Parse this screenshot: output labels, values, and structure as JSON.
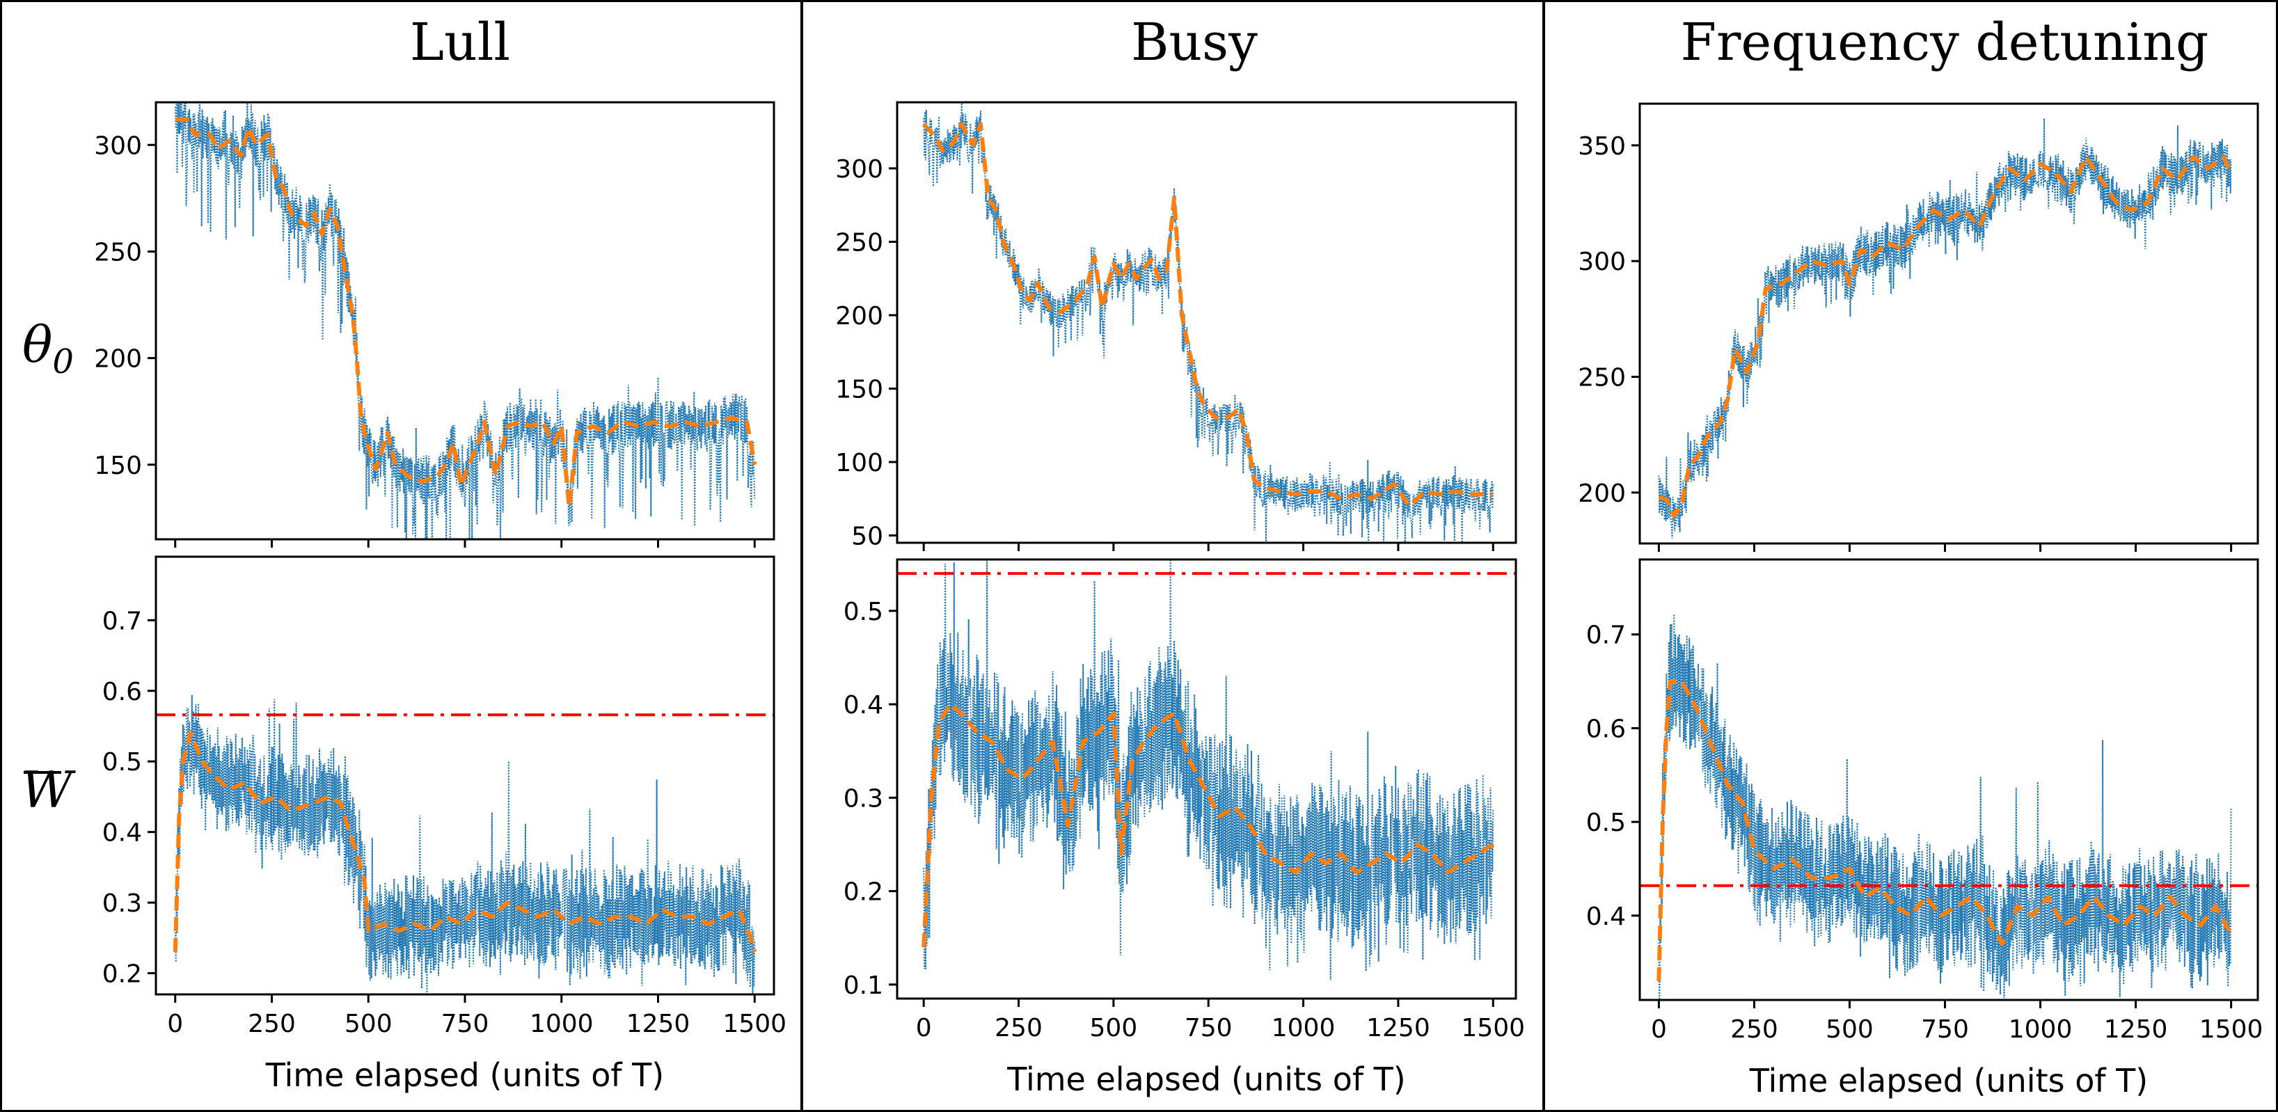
{
  "figure": {
    "colors": {
      "raw": "#1f77b4",
      "smooth": "#ff7f0e",
      "threshold": "#ff0000",
      "frame": "#000000"
    },
    "ylabels": {
      "top_symbol": "θ",
      "top_sub": "0",
      "bottom_symbol": "W"
    },
    "xlabel": "Time elapsed (units of T)"
  },
  "panels": [
    {
      "title": "Lull"
    },
    {
      "title": "Busy"
    },
    {
      "title": "Frequency detuning"
    }
  ],
  "chart_data": [
    {
      "type": "line",
      "panel": "Lull",
      "variable": "theta_0",
      "xlim": [
        -50,
        1550
      ],
      "ylim": [
        115,
        320
      ],
      "xticks": [
        0,
        250,
        500,
        750,
        1000,
        1250,
        1500
      ],
      "xticks_labeled": false,
      "yticks": [
        150,
        200,
        250,
        300
      ],
      "smooth": [
        [
          0,
          312
        ],
        [
          30,
          312
        ],
        [
          50,
          305
        ],
        [
          90,
          305
        ],
        [
          110,
          298
        ],
        [
          140,
          302
        ],
        [
          170,
          295
        ],
        [
          190,
          308
        ],
        [
          210,
          300
        ],
        [
          240,
          305
        ],
        [
          260,
          285
        ],
        [
          280,
          280
        ],
        [
          300,
          268
        ],
        [
          320,
          265
        ],
        [
          340,
          262
        ],
        [
          360,
          268
        ],
        [
          380,
          258
        ],
        [
          400,
          270
        ],
        [
          420,
          262
        ],
        [
          440,
          240
        ],
        [
          460,
          220
        ],
        [
          470,
          200
        ],
        [
          480,
          175
        ],
        [
          490,
          165
        ],
        [
          510,
          152
        ],
        [
          520,
          148
        ],
        [
          550,
          165
        ],
        [
          570,
          150
        ],
        [
          600,
          145
        ],
        [
          640,
          142
        ],
        [
          680,
          145
        ],
        [
          700,
          150
        ],
        [
          720,
          160
        ],
        [
          740,
          140
        ],
        [
          760,
          150
        ],
        [
          780,
          158
        ],
        [
          800,
          170
        ],
        [
          830,
          145
        ],
        [
          860,
          168
        ],
        [
          890,
          170
        ],
        [
          920,
          168
        ],
        [
          950,
          170
        ],
        [
          980,
          160
        ],
        [
          1000,
          168
        ],
        [
          1020,
          130
        ],
        [
          1040,
          165
        ],
        [
          1080,
          168
        ],
        [
          1120,
          165
        ],
        [
          1160,
          170
        ],
        [
          1200,
          168
        ],
        [
          1240,
          170
        ],
        [
          1280,
          168
        ],
        [
          1320,
          170
        ],
        [
          1360,
          168
        ],
        [
          1400,
          170
        ],
        [
          1440,
          172
        ],
        [
          1480,
          170
        ],
        [
          1500,
          150
        ]
      ],
      "raw": {
        "seed": 11,
        "amp": 12,
        "down": 26
      }
    },
    {
      "type": "line",
      "panel": "Lull",
      "variable": "W_bar",
      "xlim": [
        -50,
        1550
      ],
      "ylim": [
        0.17,
        0.79
      ],
      "xticks": [
        0,
        250,
        500,
        750,
        1000,
        1250,
        1500
      ],
      "xticks_labeled": true,
      "yticks": [
        0.2,
        0.3,
        0.4,
        0.5,
        0.6,
        0.7
      ],
      "threshold": 0.566,
      "smooth": [
        [
          0,
          0.23
        ],
        [
          10,
          0.42
        ],
        [
          20,
          0.5
        ],
        [
          40,
          0.54
        ],
        [
          70,
          0.5
        ],
        [
          100,
          0.48
        ],
        [
          140,
          0.46
        ],
        [
          180,
          0.47
        ],
        [
          220,
          0.44
        ],
        [
          260,
          0.45
        ],
        [
          300,
          0.43
        ],
        [
          350,
          0.44
        ],
        [
          400,
          0.45
        ],
        [
          430,
          0.44
        ],
        [
          450,
          0.4
        ],
        [
          470,
          0.37
        ],
        [
          490,
          0.33
        ],
        [
          500,
          0.26
        ],
        [
          540,
          0.27
        ],
        [
          580,
          0.26
        ],
        [
          620,
          0.27
        ],
        [
          660,
          0.26
        ],
        [
          700,
          0.28
        ],
        [
          740,
          0.27
        ],
        [
          780,
          0.29
        ],
        [
          820,
          0.28
        ],
        [
          860,
          0.3
        ],
        [
          900,
          0.29
        ],
        [
          940,
          0.28
        ],
        [
          980,
          0.29
        ],
        [
          1020,
          0.27
        ],
        [
          1060,
          0.28
        ],
        [
          1100,
          0.27
        ],
        [
          1140,
          0.28
        ],
        [
          1180,
          0.28
        ],
        [
          1220,
          0.27
        ],
        [
          1260,
          0.29
        ],
        [
          1300,
          0.28
        ],
        [
          1340,
          0.28
        ],
        [
          1380,
          0.27
        ],
        [
          1420,
          0.28
        ],
        [
          1460,
          0.29
        ],
        [
          1490,
          0.25
        ],
        [
          1500,
          0.23
        ]
      ],
      "raw": {
        "seed": 21,
        "amp": 0.075,
        "down": 0.02
      }
    },
    {
      "type": "line",
      "panel": "Busy",
      "variable": "theta_0",
      "xlim": [
        -70,
        1560
      ],
      "ylim": [
        45,
        345
      ],
      "xticks": [
        0,
        250,
        500,
        750,
        1000,
        1250,
        1500
      ],
      "xticks_labeled": false,
      "yticks": [
        50,
        100,
        150,
        200,
        250,
        300
      ],
      "smooth": [
        [
          0,
          330
        ],
        [
          30,
          322
        ],
        [
          50,
          312
        ],
        [
          80,
          318
        ],
        [
          100,
          330
        ],
        [
          130,
          316
        ],
        [
          150,
          330
        ],
        [
          170,
          280
        ],
        [
          190,
          272
        ],
        [
          210,
          250
        ],
        [
          240,
          232
        ],
        [
          260,
          215
        ],
        [
          280,
          210
        ],
        [
          300,
          222
        ],
        [
          330,
          205
        ],
        [
          360,
          202
        ],
        [
          400,
          210
        ],
        [
          430,
          220
        ],
        [
          450,
          240
        ],
        [
          470,
          205
        ],
        [
          500,
          235
        ],
        [
          520,
          225
        ],
        [
          540,
          235
        ],
        [
          560,
          225
        ],
        [
          580,
          232
        ],
        [
          600,
          238
        ],
        [
          620,
          225
        ],
        [
          640,
          230
        ],
        [
          660,
          280
        ],
        [
          680,
          200
        ],
        [
          700,
          175
        ],
        [
          720,
          150
        ],
        [
          740,
          138
        ],
        [
          770,
          130
        ],
        [
          800,
          130
        ],
        [
          830,
          136
        ],
        [
          850,
          120
        ],
        [
          870,
          88
        ],
        [
          900,
          82
        ],
        [
          940,
          80
        ],
        [
          980,
          78
        ],
        [
          1020,
          80
        ],
        [
          1060,
          80
        ],
        [
          1100,
          75
        ],
        [
          1140,
          78
        ],
        [
          1180,
          75
        ],
        [
          1240,
          85
        ],
        [
          1280,
          70
        ],
        [
          1320,
          80
        ],
        [
          1360,
          78
        ],
        [
          1400,
          80
        ],
        [
          1440,
          78
        ],
        [
          1500,
          78
        ]
      ],
      "raw": {
        "seed": 31,
        "amp": 12,
        "down": 20
      }
    },
    {
      "type": "line",
      "panel": "Busy",
      "variable": "W_bar",
      "xlim": [
        -70,
        1560
      ],
      "ylim": [
        0.085,
        0.555
      ],
      "xticks": [
        0,
        250,
        500,
        750,
        1000,
        1250,
        1500
      ],
      "xticks_labeled": true,
      "yticks": [
        0.1,
        0.2,
        0.3,
        0.4,
        0.5
      ],
      "threshold": 0.54,
      "smooth": [
        [
          0,
          0.14
        ],
        [
          20,
          0.3
        ],
        [
          40,
          0.38
        ],
        [
          70,
          0.4
        ],
        [
          100,
          0.39
        ],
        [
          140,
          0.37
        ],
        [
          180,
          0.36
        ],
        [
          220,
          0.33
        ],
        [
          260,
          0.32
        ],
        [
          300,
          0.34
        ],
        [
          340,
          0.36
        ],
        [
          380,
          0.27
        ],
        [
          420,
          0.36
        ],
        [
          460,
          0.37
        ],
        [
          500,
          0.39
        ],
        [
          520,
          0.24
        ],
        [
          550,
          0.34
        ],
        [
          580,
          0.36
        ],
        [
          620,
          0.38
        ],
        [
          660,
          0.39
        ],
        [
          700,
          0.34
        ],
        [
          740,
          0.31
        ],
        [
          780,
          0.28
        ],
        [
          820,
          0.29
        ],
        [
          860,
          0.27
        ],
        [
          900,
          0.24
        ],
        [
          940,
          0.23
        ],
        [
          980,
          0.22
        ],
        [
          1020,
          0.24
        ],
        [
          1060,
          0.23
        ],
        [
          1100,
          0.24
        ],
        [
          1140,
          0.22
        ],
        [
          1180,
          0.23
        ],
        [
          1220,
          0.24
        ],
        [
          1260,
          0.23
        ],
        [
          1300,
          0.25
        ],
        [
          1340,
          0.24
        ],
        [
          1380,
          0.22
        ],
        [
          1420,
          0.23
        ],
        [
          1460,
          0.24
        ],
        [
          1500,
          0.25
        ]
      ],
      "raw": {
        "seed": 41,
        "amp": 0.085,
        "down": 0.03
      }
    },
    {
      "type": "line",
      "panel": "Frequency detuning",
      "variable": "theta_0",
      "xlim": [
        -50,
        1570
      ],
      "ylim": [
        178,
        368
      ],
      "xticks": [
        0,
        250,
        500,
        750,
        1000,
        1250,
        1500
      ],
      "xticks_labeled": false,
      "yticks": [
        200,
        250,
        300,
        350
      ],
      "smooth": [
        [
          0,
          198
        ],
        [
          20,
          197
        ],
        [
          40,
          190
        ],
        [
          60,
          195
        ],
        [
          80,
          212
        ],
        [
          100,
          215
        ],
        [
          130,
          225
        ],
        [
          160,
          230
        ],
        [
          180,
          240
        ],
        [
          200,
          262
        ],
        [
          230,
          252
        ],
        [
          260,
          265
        ],
        [
          280,
          288
        ],
        [
          320,
          290
        ],
        [
          360,
          295
        ],
        [
          400,
          300
        ],
        [
          440,
          298
        ],
        [
          480,
          300
        ],
        [
          500,
          290
        ],
        [
          530,
          305
        ],
        [
          560,
          302
        ],
        [
          600,
          308
        ],
        [
          640,
          305
        ],
        [
          680,
          315
        ],
        [
          720,
          322
        ],
        [
          760,
          318
        ],
        [
          800,
          322
        ],
        [
          840,
          315
        ],
        [
          880,
          330
        ],
        [
          920,
          340
        ],
        [
          960,
          335
        ],
        [
          1000,
          342
        ],
        [
          1040,
          338
        ],
        [
          1080,
          330
        ],
        [
          1120,
          345
        ],
        [
          1160,
          335
        ],
        [
          1200,
          325
        ],
        [
          1240,
          322
        ],
        [
          1280,
          325
        ],
        [
          1320,
          340
        ],
        [
          1360,
          335
        ],
        [
          1400,
          345
        ],
        [
          1440,
          340
        ],
        [
          1480,
          345
        ],
        [
          1500,
          338
        ]
      ],
      "raw": {
        "seed": 51,
        "amp": 10,
        "down": 8
      }
    },
    {
      "type": "line",
      "panel": "Frequency detuning",
      "variable": "W_bar",
      "xlim": [
        -50,
        1570
      ],
      "ylim": [
        0.31,
        0.78
      ],
      "xticks": [
        0,
        250,
        500,
        750,
        1000,
        1250,
        1500
      ],
      "xticks_labeled": true,
      "yticks": [
        0.4,
        0.5,
        0.6,
        0.7
      ],
      "threshold": 0.432,
      "smooth": [
        [
          0,
          0.33
        ],
        [
          10,
          0.5
        ],
        [
          20,
          0.6
        ],
        [
          30,
          0.65
        ],
        [
          60,
          0.65
        ],
        [
          100,
          0.62
        ],
        [
          140,
          0.58
        ],
        [
          180,
          0.54
        ],
        [
          220,
          0.52
        ],
        [
          250,
          0.47
        ],
        [
          300,
          0.45
        ],
        [
          350,
          0.46
        ],
        [
          400,
          0.44
        ],
        [
          450,
          0.44
        ],
        [
          500,
          0.45
        ],
        [
          540,
          0.42
        ],
        [
          580,
          0.43
        ],
        [
          620,
          0.41
        ],
        [
          660,
          0.4
        ],
        [
          700,
          0.42
        ],
        [
          740,
          0.4
        ],
        [
          780,
          0.41
        ],
        [
          820,
          0.42
        ],
        [
          860,
          0.4
        ],
        [
          900,
          0.37
        ],
        [
          940,
          0.41
        ],
        [
          980,
          0.4
        ],
        [
          1020,
          0.42
        ],
        [
          1060,
          0.39
        ],
        [
          1100,
          0.4
        ],
        [
          1140,
          0.42
        ],
        [
          1180,
          0.4
        ],
        [
          1220,
          0.39
        ],
        [
          1260,
          0.41
        ],
        [
          1300,
          0.4
        ],
        [
          1340,
          0.42
        ],
        [
          1380,
          0.4
        ],
        [
          1420,
          0.39
        ],
        [
          1460,
          0.41
        ],
        [
          1500,
          0.38
        ]
      ],
      "raw": {
        "seed": 61,
        "amp": 0.065,
        "down": 0.015
      }
    }
  ]
}
